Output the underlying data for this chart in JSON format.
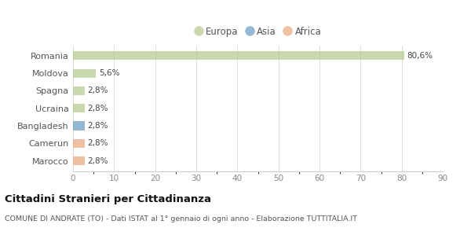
{
  "categories": [
    "Romania",
    "Moldova",
    "Spagna",
    "Ucraina",
    "Bangladesh",
    "Camerun",
    "Marocco"
  ],
  "values": [
    80.6,
    5.6,
    2.8,
    2.8,
    2.8,
    2.8,
    2.8
  ],
  "labels": [
    "80,6%",
    "5,6%",
    "2,8%",
    "2,8%",
    "2,8%",
    "2,8%",
    "2,8%"
  ],
  "colors": [
    "#b5c98e",
    "#b5c98e",
    "#b5c98e",
    "#b5c98e",
    "#6b9dc2",
    "#e8a97e",
    "#e8a97e"
  ],
  "legend_labels": [
    "Europa",
    "Asia",
    "Africa"
  ],
  "legend_colors": [
    "#b5c98e",
    "#6b9dc2",
    "#e8a97e"
  ],
  "xlim": [
    0,
    90
  ],
  "xticks": [
    0,
    10,
    20,
    30,
    40,
    50,
    60,
    70,
    80,
    90
  ],
  "title": "Cittadini Stranieri per Cittadinanza",
  "subtitle": "COMUNE DI ANDRATE (TO) - Dati ISTAT al 1° gennaio di ogni anno - Elaborazione TUTTITALIA.IT",
  "background_color": "#ffffff",
  "bar_alpha": 0.72,
  "bar_height": 0.5
}
